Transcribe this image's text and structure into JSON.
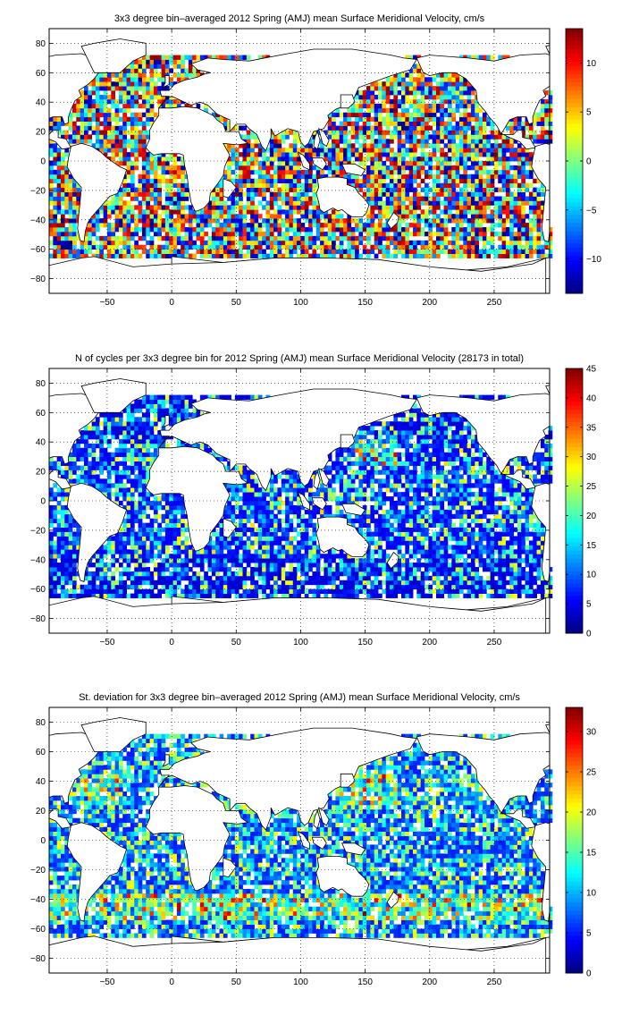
{
  "chart_data": [
    {
      "type": "heatmap",
      "title": "3x3 degree bin–averaged 2012 Spring (AMJ) mean Surface Meridional Velocity, cm/s",
      "xlabel": "",
      "ylabel": "",
      "xlim": [
        -95,
        293
      ],
      "ylim": [
        -90,
        90
      ],
      "xticks": [
        -50,
        0,
        50,
        100,
        150,
        200,
        250
      ],
      "yticks": [
        -80,
        -60,
        -40,
        -20,
        0,
        20,
        40,
        60,
        80
      ],
      "grid": true,
      "bin_size_deg": 3,
      "colorbar": {
        "location": "right",
        "colormap": "jet",
        "range": [
          -13.5,
          13.5
        ],
        "ticks": [
          -10,
          -5,
          0,
          5,
          10
        ]
      }
    },
    {
      "type": "heatmap",
      "title": "N of cycles per 3x3 degree bin for 2012 Spring (AMJ) mean Surface Meridional Velocity (28173 in total)",
      "xlabel": "",
      "ylabel": "",
      "xlim": [
        -95,
        293
      ],
      "ylim": [
        -90,
        90
      ],
      "xticks": [
        -50,
        0,
        50,
        100,
        150,
        200,
        250
      ],
      "yticks": [
        -80,
        -60,
        -40,
        -20,
        0,
        20,
        40,
        60,
        80
      ],
      "grid": true,
      "bin_size_deg": 3,
      "colorbar": {
        "location": "right",
        "colormap": "jet",
        "range": [
          0,
          45
        ],
        "ticks": [
          0,
          5,
          10,
          15,
          20,
          25,
          30,
          35,
          40,
          45
        ]
      }
    },
    {
      "type": "heatmap",
      "title": "St. deviation for 3x3 degree bin–averaged 2012 Spring (AMJ) mean Surface Meridional Velocity, cm/s",
      "xlabel": "",
      "ylabel": "",
      "xlim": [
        -95,
        293
      ],
      "ylim": [
        -90,
        90
      ],
      "xticks": [
        -50,
        0,
        50,
        100,
        150,
        200,
        250
      ],
      "yticks": [
        -80,
        -60,
        -40,
        -20,
        0,
        20,
        40,
        60,
        80
      ],
      "grid": true,
      "bin_size_deg": 3,
      "colorbar": {
        "location": "right",
        "colormap": "jet",
        "range": [
          0,
          33
        ],
        "ticks": [
          0,
          5,
          10,
          15,
          20,
          25,
          30
        ]
      }
    }
  ]
}
